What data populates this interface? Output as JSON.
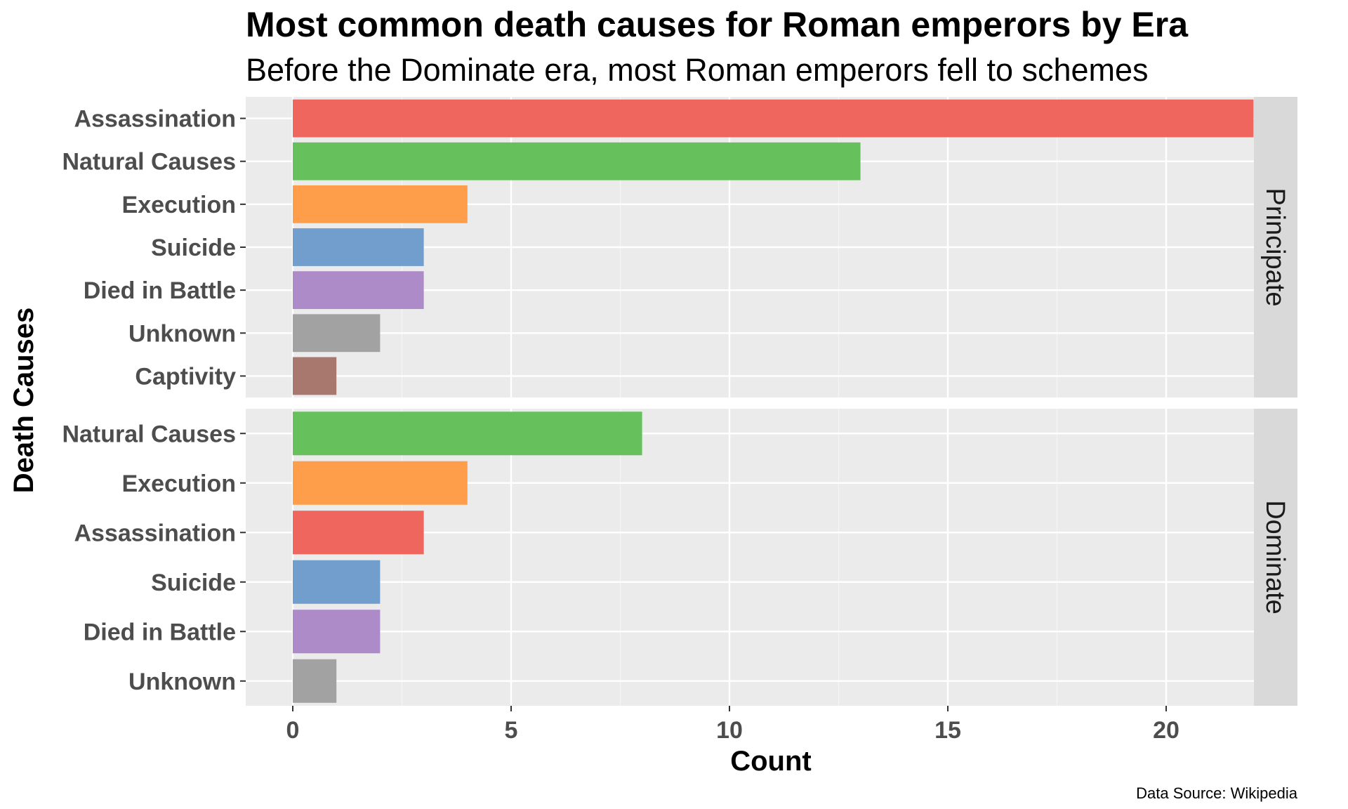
{
  "chart_data": {
    "type": "bar",
    "orientation": "horizontal",
    "title": "Most common death causes for Roman emperors by Era",
    "subtitle": "Before the Dominate era, most Roman emperors fell to schemes",
    "xlabel": "Count",
    "ylabel": "Death Causes",
    "caption": "Data Source: Wikipedia",
    "xlim": [
      0,
      23
    ],
    "xticks": [
      0,
      5,
      10,
      15,
      20
    ],
    "grid": true,
    "colors": {
      "Assassination": "#ef665f",
      "Natural Causes": "#66c15c",
      "Execution": "#ff9e4a",
      "Suicide": "#729ece",
      "Died in Battle": "#ad8bc9",
      "Unknown": "#a2a2a2",
      "Captivity": "#a8786e"
    },
    "facets": [
      {
        "name": "Principate",
        "categories": [
          "Assassination",
          "Natural Causes",
          "Execution",
          "Suicide",
          "Died in Battle",
          "Unknown",
          "Captivity"
        ],
        "values": [
          22,
          13,
          4,
          3,
          3,
          2,
          1
        ]
      },
      {
        "name": "Dominate",
        "categories": [
          "Natural Causes",
          "Execution",
          "Assassination",
          "Suicide",
          "Died in Battle",
          "Unknown"
        ],
        "values": [
          8,
          4,
          3,
          2,
          2,
          1
        ]
      }
    ]
  }
}
